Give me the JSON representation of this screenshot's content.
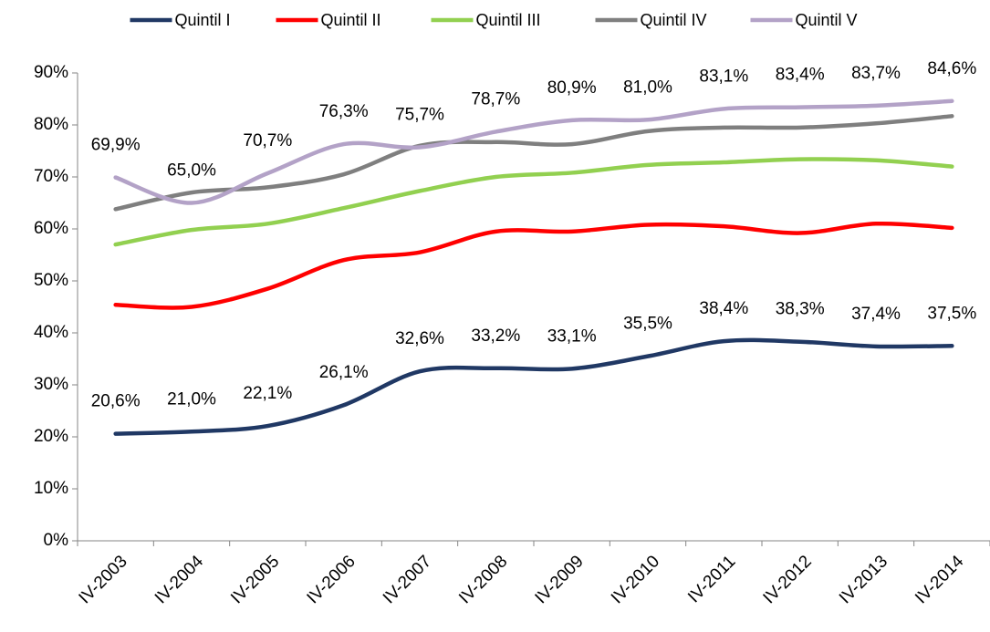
{
  "chart_data": {
    "type": "line",
    "categories": [
      "IV-2003",
      "IV-2004",
      "IV-2005",
      "IV-2006",
      "IV-2007",
      "IV-2008",
      "IV-2009",
      "IV-2010",
      "IV-2011",
      "IV-2012",
      "IV-2013",
      "IV-2014"
    ],
    "series": [
      {
        "name": "Quintil I",
        "color": "#203864",
        "values": [
          20.6,
          21.0,
          22.1,
          26.1,
          32.6,
          33.2,
          33.1,
          35.5,
          38.4,
          38.3,
          37.4,
          37.5
        ],
        "value_labels": [
          "20,6%",
          "21,0%",
          "22,1%",
          "26,1%",
          "32,6%",
          "33,2%",
          "33,1%",
          "35,5%",
          "38,4%",
          "38,3%",
          "37,4%",
          "37,5%"
        ]
      },
      {
        "name": "Quintil II",
        "color": "#ff0000",
        "values": [
          45.4,
          45.0,
          48.5,
          54.0,
          55.5,
          59.5,
          59.5,
          60.8,
          60.5,
          59.2,
          61.0,
          60.2
        ]
      },
      {
        "name": "Quintil III",
        "color": "#92d050",
        "values": [
          57.0,
          59.8,
          61.0,
          64.0,
          67.3,
          70.0,
          70.8,
          72.3,
          72.8,
          73.4,
          73.2,
          72.0
        ]
      },
      {
        "name": "Quintil IV",
        "color": "#7f7f7f",
        "values": [
          63.8,
          67.0,
          68.0,
          70.5,
          76.0,
          76.7,
          76.3,
          78.8,
          79.5,
          79.5,
          80.3,
          81.7
        ]
      },
      {
        "name": "Quintil V",
        "color": "#b3a2c7",
        "values": [
          69.9,
          65.0,
          70.7,
          76.3,
          75.7,
          78.7,
          80.9,
          81.0,
          83.1,
          83.4,
          83.7,
          84.6
        ],
        "value_labels": [
          "69,9%",
          "65,0%",
          "70,7%",
          "76,3%",
          "75,7%",
          "78,7%",
          "80,9%",
          "81,0%",
          "83,1%",
          "83,4%",
          "83,7%",
          "84,6%"
        ]
      }
    ],
    "ylim": [
      0,
      90
    ],
    "yticks": [
      {
        "value": 0,
        "label": "0%"
      },
      {
        "value": 10,
        "label": "10%"
      },
      {
        "value": 20,
        "label": "20%"
      },
      {
        "value": 30,
        "label": "30%"
      },
      {
        "value": 40,
        "label": "40%"
      },
      {
        "value": 50,
        "label": "50%"
      },
      {
        "value": 60,
        "label": "60%"
      },
      {
        "value": 70,
        "label": "70%"
      },
      {
        "value": 80,
        "label": "80%"
      },
      {
        "value": 90,
        "label": "90%"
      }
    ],
    "legend": "top"
  }
}
